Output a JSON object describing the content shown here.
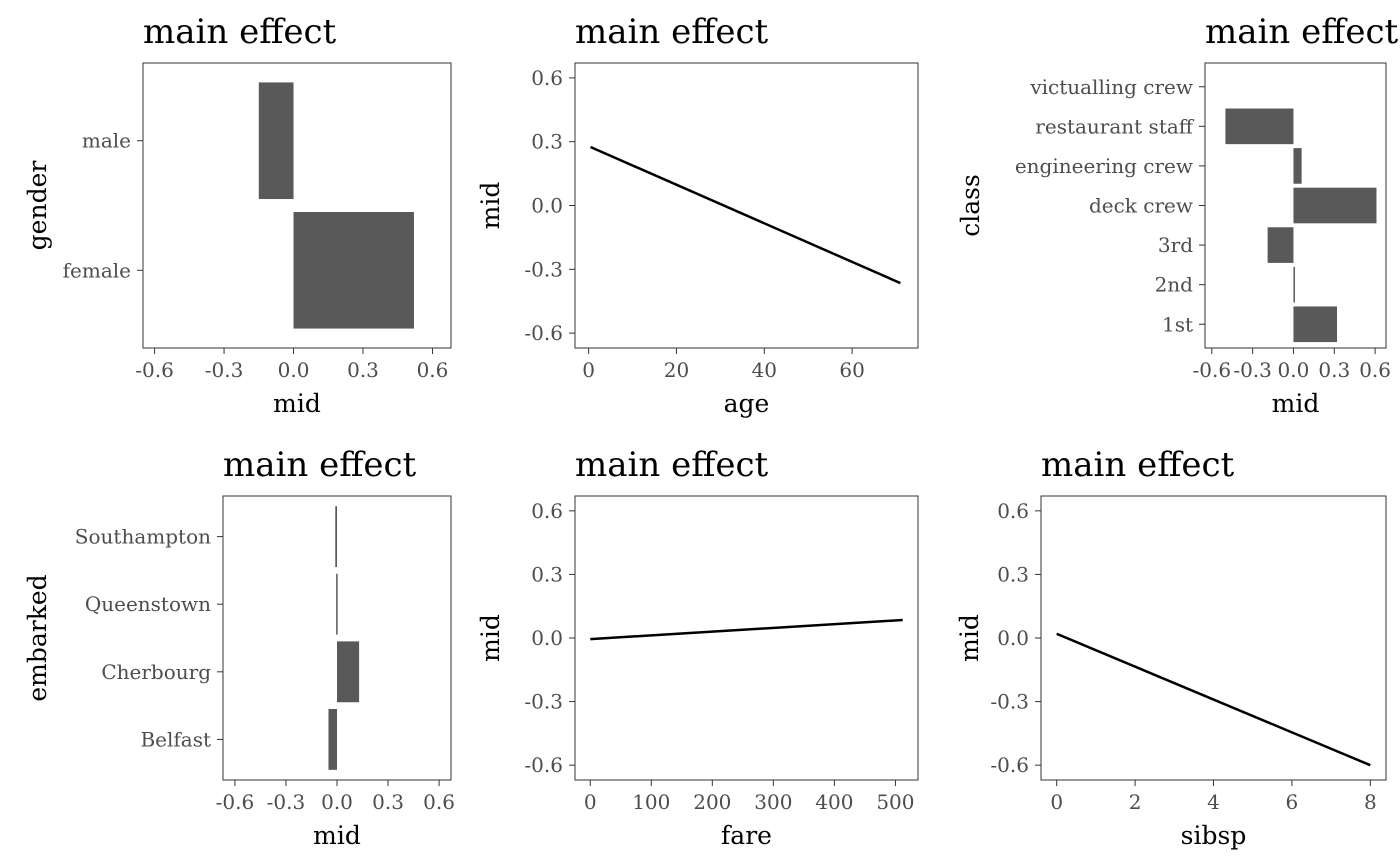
{
  "chart_data": [
    {
      "type": "bar",
      "orientation": "horizontal",
      "title": "main effect",
      "xlabel": "mid",
      "ylabel": "gender",
      "categories": [
        "male",
        "female"
      ],
      "values": [
        -0.15,
        0.52
      ],
      "xlim": [
        -0.65,
        0.68
      ],
      "xticks": [
        -0.6,
        -0.3,
        0.0,
        0.3,
        0.6
      ],
      "xtick_labels": [
        "-0.6",
        "-0.3",
        "0.0",
        "0.3",
        "0.6"
      ],
      "grid": false
    },
    {
      "type": "line",
      "title": "main effect",
      "xlabel": "age",
      "ylabel": "mid",
      "x": [
        0.42,
        71.0
      ],
      "y": [
        0.275,
        -0.365
      ],
      "xlim": [
        -3.1,
        75.0
      ],
      "ylim": [
        -0.67,
        0.67
      ],
      "xticks": [
        0,
        20,
        40,
        60
      ],
      "xtick_labels": [
        "0",
        "20",
        "40",
        "60"
      ],
      "yticks": [
        0.6,
        0.3,
        0.0,
        -0.3,
        -0.6
      ],
      "ytick_labels": [
        "0.6",
        "0.3",
        "0.0",
        "-0.3",
        "-0.6"
      ],
      "grid": false
    },
    {
      "type": "bar",
      "orientation": "horizontal",
      "title": "main effect",
      "xlabel": "mid",
      "ylabel": "class",
      "categories": [
        "victualling crew",
        "restaurant staff",
        "engineering crew",
        "deck crew",
        "3rd",
        "2nd",
        "1st"
      ],
      "values": [
        0.0,
        -0.5,
        0.06,
        0.61,
        -0.19,
        0.01,
        0.32
      ],
      "xlim": [
        -0.65,
        0.68
      ],
      "xticks": [
        -0.6,
        -0.3,
        0.0,
        0.3,
        0.6
      ],
      "xtick_labels": [
        "-0.6",
        "-0.3",
        "0.0",
        "0.3",
        "0.6"
      ],
      "grid": false
    },
    {
      "type": "bar",
      "orientation": "horizontal",
      "title": "main effect",
      "xlabel": "mid",
      "ylabel": "embarked",
      "categories": [
        "Southampton",
        "Queenstown",
        "Cherbourg",
        "Belfast"
      ],
      "values": [
        -0.01,
        -0.005,
        0.13,
        -0.05
      ],
      "xlim": [
        -0.67,
        0.67
      ],
      "xticks": [
        -0.6,
        -0.3,
        0.0,
        0.3,
        0.6
      ],
      "xtick_labels": [
        "-0.6",
        "-0.3",
        "0.0",
        "0.3",
        "0.6"
      ],
      "grid": false
    },
    {
      "type": "line",
      "title": "main effect",
      "xlabel": "fare",
      "ylabel": "mid",
      "x": [
        0,
        512
      ],
      "y": [
        -0.005,
        0.085
      ],
      "xlim": [
        -25,
        537
      ],
      "ylim": [
        -0.67,
        0.67
      ],
      "xticks": [
        0,
        100,
        200,
        300,
        400,
        500
      ],
      "xtick_labels": [
        "0",
        "100",
        "200",
        "300",
        "400",
        "500"
      ],
      "yticks": [
        0.6,
        0.3,
        0.0,
        -0.3,
        -0.6
      ],
      "ytick_labels": [
        "0.6",
        "0.3",
        "0.0",
        "-0.3",
        "-0.6"
      ],
      "grid": false
    },
    {
      "type": "line",
      "title": "main effect",
      "xlabel": "sibsp",
      "ylabel": "mid",
      "x": [
        0,
        8
      ],
      "y": [
        0.02,
        -0.6
      ],
      "xlim": [
        -0.4,
        8.4
      ],
      "ylim": [
        -0.67,
        0.67
      ],
      "xticks": [
        0,
        2,
        4,
        6,
        8
      ],
      "xtick_labels": [
        "0",
        "2",
        "4",
        "6",
        "8"
      ],
      "yticks": [
        0.6,
        0.3,
        0.0,
        -0.3,
        -0.6
      ],
      "ytick_labels": [
        "0.6",
        "0.3",
        "0.0",
        "-0.3",
        "-0.6"
      ],
      "grid": false
    }
  ]
}
